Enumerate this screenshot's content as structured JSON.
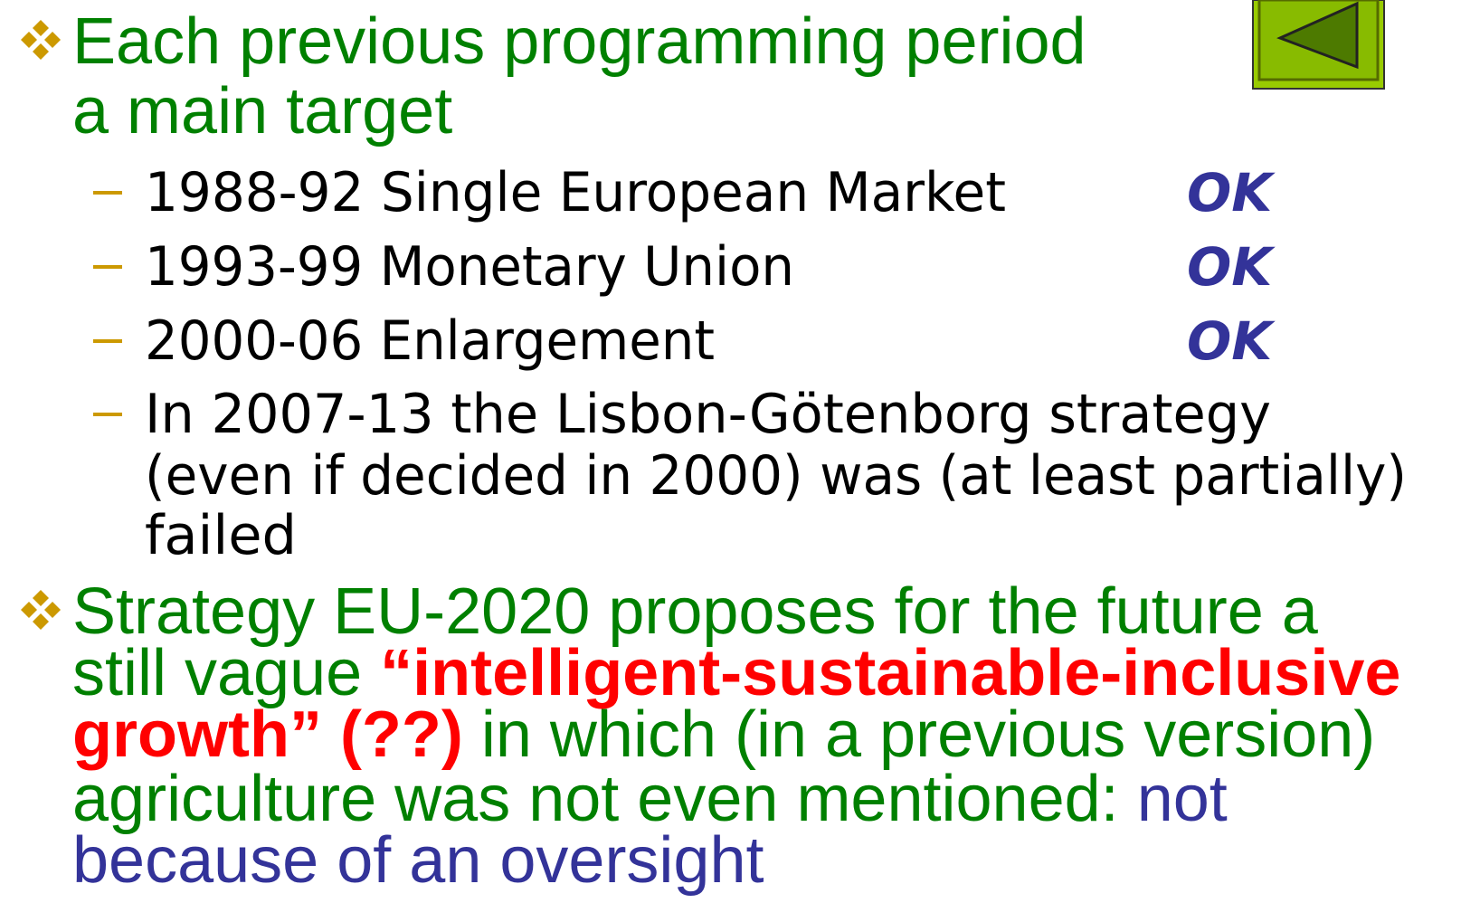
{
  "slide": {
    "bullets": [
      {
        "lines": [
          [
            {
              "text": "Each previous programming period",
              "style": "green"
            }
          ],
          [
            {
              "text": "a main target",
              "style": "green"
            }
          ]
        ],
        "items": [
          {
            "lines": [
              "1988-92 Single European Market"
            ],
            "status": "OK"
          },
          {
            "lines": [
              "1993-99 Monetary Union"
            ],
            "status": "OK"
          },
          {
            "lines": [
              "2000-06 Enlargement"
            ],
            "status": "OK"
          },
          {
            "lines": [
              "In 2007-13 the Lisbon-Götenborg strategy",
              "(even if decided in 2000) was (at least partially)",
              "failed"
            ]
          }
        ]
      },
      {
        "lines": [
          [
            {
              "text": "Strategy EU-2020 proposes for the future a",
              "style": "green"
            }
          ],
          [
            {
              "text": "still vague ",
              "style": "green"
            },
            {
              "text": "“intelligent-sustainable-inclusive",
              "style": "red"
            }
          ],
          [
            {
              "text": "growth” (??)",
              "style": "red"
            },
            {
              "text": " in which (in a previous version)",
              "style": "green"
            }
          ],
          [
            {
              "text": "agriculture was not even mentioned: ",
              "style": "green"
            },
            {
              "text": "not",
              "style": "blue"
            }
          ],
          [
            {
              "text": "because of an oversight",
              "style": "blue"
            }
          ]
        ]
      }
    ]
  }
}
